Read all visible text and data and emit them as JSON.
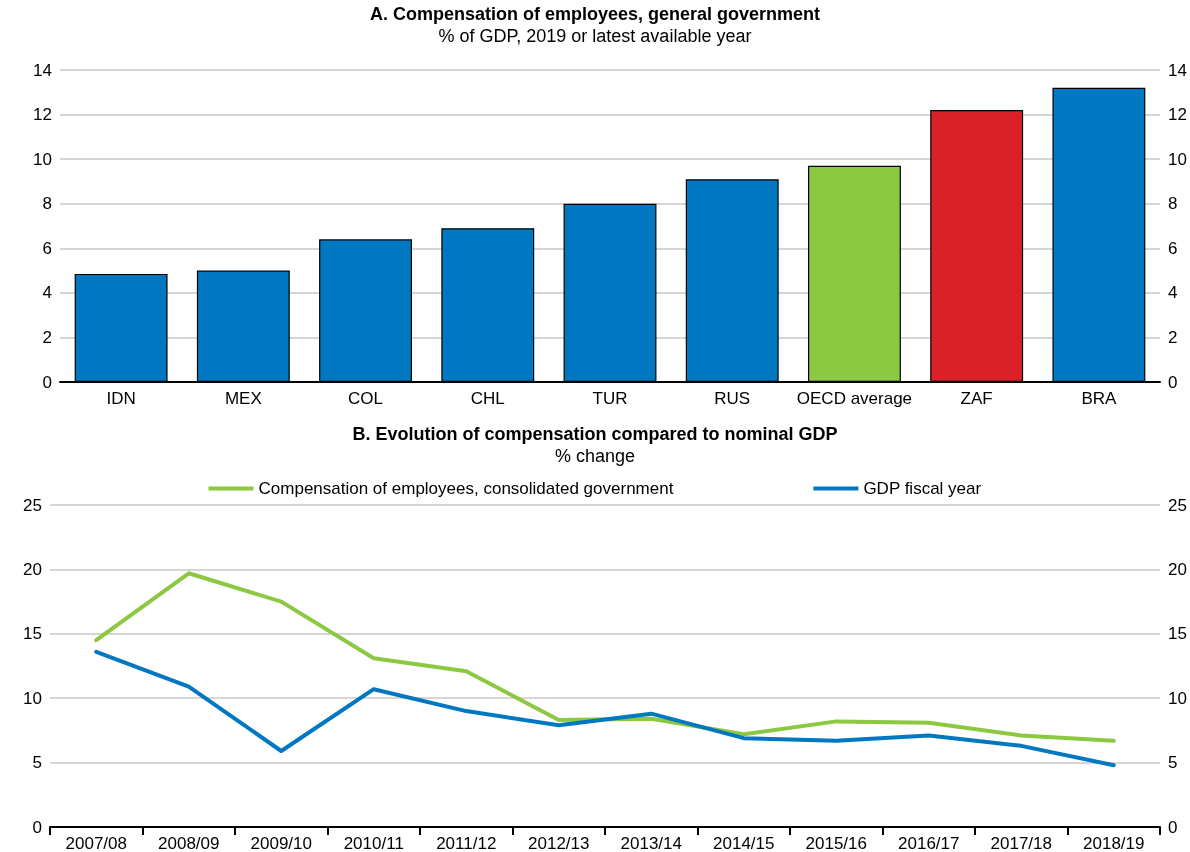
{
  "chart_data": [
    {
      "type": "bar",
      "title": "A. Compensation of employees, general government",
      "subtitle": "% of GDP, 2019 or latest available year",
      "categories": [
        "IDN",
        "MEX",
        "COL",
        "CHL",
        "TUR",
        "RUS",
        "OECD average",
        "ZAF",
        "BRA"
      ],
      "values": [
        4.85,
        5.0,
        6.4,
        6.9,
        8.0,
        9.1,
        9.7,
        12.2,
        13.2
      ],
      "colors": [
        "#0078c1",
        "#0078c1",
        "#0078c1",
        "#0078c1",
        "#0078c1",
        "#0078c1",
        "#8cc841",
        "#da2128",
        "#0078c1"
      ],
      "ylim": [
        0,
        14
      ],
      "yticks": [
        0,
        2,
        4,
        6,
        8,
        10,
        12,
        14
      ],
      "y2lim": [
        0,
        14
      ],
      "y2ticks": [
        0,
        2,
        4,
        6,
        8,
        10,
        12,
        14
      ],
      "grid": "y",
      "legend": false
    },
    {
      "type": "line",
      "title": "B. Evolution of compensation compared to nominal GDP",
      "subtitle": "% change",
      "categories": [
        "2007/08",
        "2008/09",
        "2009/10",
        "2010/11",
        "2011/12",
        "2012/13",
        "2013/14",
        "2014/15",
        "2015/16",
        "2016/17",
        "2017/18",
        "2018/19"
      ],
      "series": [
        {
          "name": "Compensation of employees, consolidated government",
          "color": "#8cc841",
          "values": [
            14.5,
            19.7,
            17.5,
            13.1,
            12.1,
            8.3,
            8.4,
            7.2,
            8.2,
            8.1,
            7.1,
            6.7
          ]
        },
        {
          "name": "GDP fiscal year",
          "color": "#0078c1",
          "values": [
            13.6,
            10.9,
            5.9,
            10.7,
            9.0,
            7.9,
            8.8,
            6.9,
            6.7,
            7.1,
            6.3,
            4.8
          ]
        }
      ],
      "ylim": [
        0,
        25
      ],
      "yticks": [
        0,
        5,
        10,
        15,
        20,
        25
      ],
      "y2lim": [
        0,
        25
      ],
      "y2ticks": [
        0,
        5,
        10,
        15,
        20,
        25
      ],
      "grid": "y",
      "legend": "top",
      "marker": "none",
      "line_style": "solid"
    }
  ]
}
